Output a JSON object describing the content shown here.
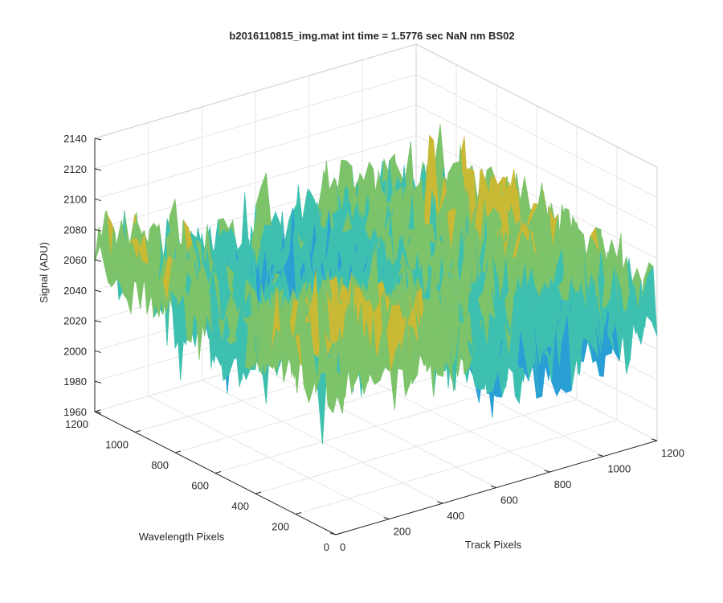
{
  "chart_data": {
    "type": "surface",
    "title": "b2016110815_img.mat int time = 1.5776 sec  NaN nm BS02",
    "xlabel": "Track Pixels",
    "ylabel": "Wavelength Pixels",
    "zlabel": "Signal (ADU)",
    "xlim": [
      0,
      1200
    ],
    "ylim": [
      0,
      1200
    ],
    "zlim": [
      1960,
      2140
    ],
    "x_ticks": [
      "0",
      "200",
      "400",
      "600",
      "800",
      "1000",
      "1200"
    ],
    "y_ticks": [
      "0",
      "200",
      "400",
      "600",
      "800",
      "1000",
      "1200"
    ],
    "z_ticks": [
      "1960",
      "1980",
      "2000",
      "2020",
      "2040",
      "2060",
      "2080",
      "2100",
      "2120",
      "2140"
    ],
    "grid": true,
    "colormap": [
      "#0072bd",
      "#2a9fd6",
      "#3ec0b0",
      "#7cc36a",
      "#c9b935",
      "#e8c43c"
    ]
  }
}
